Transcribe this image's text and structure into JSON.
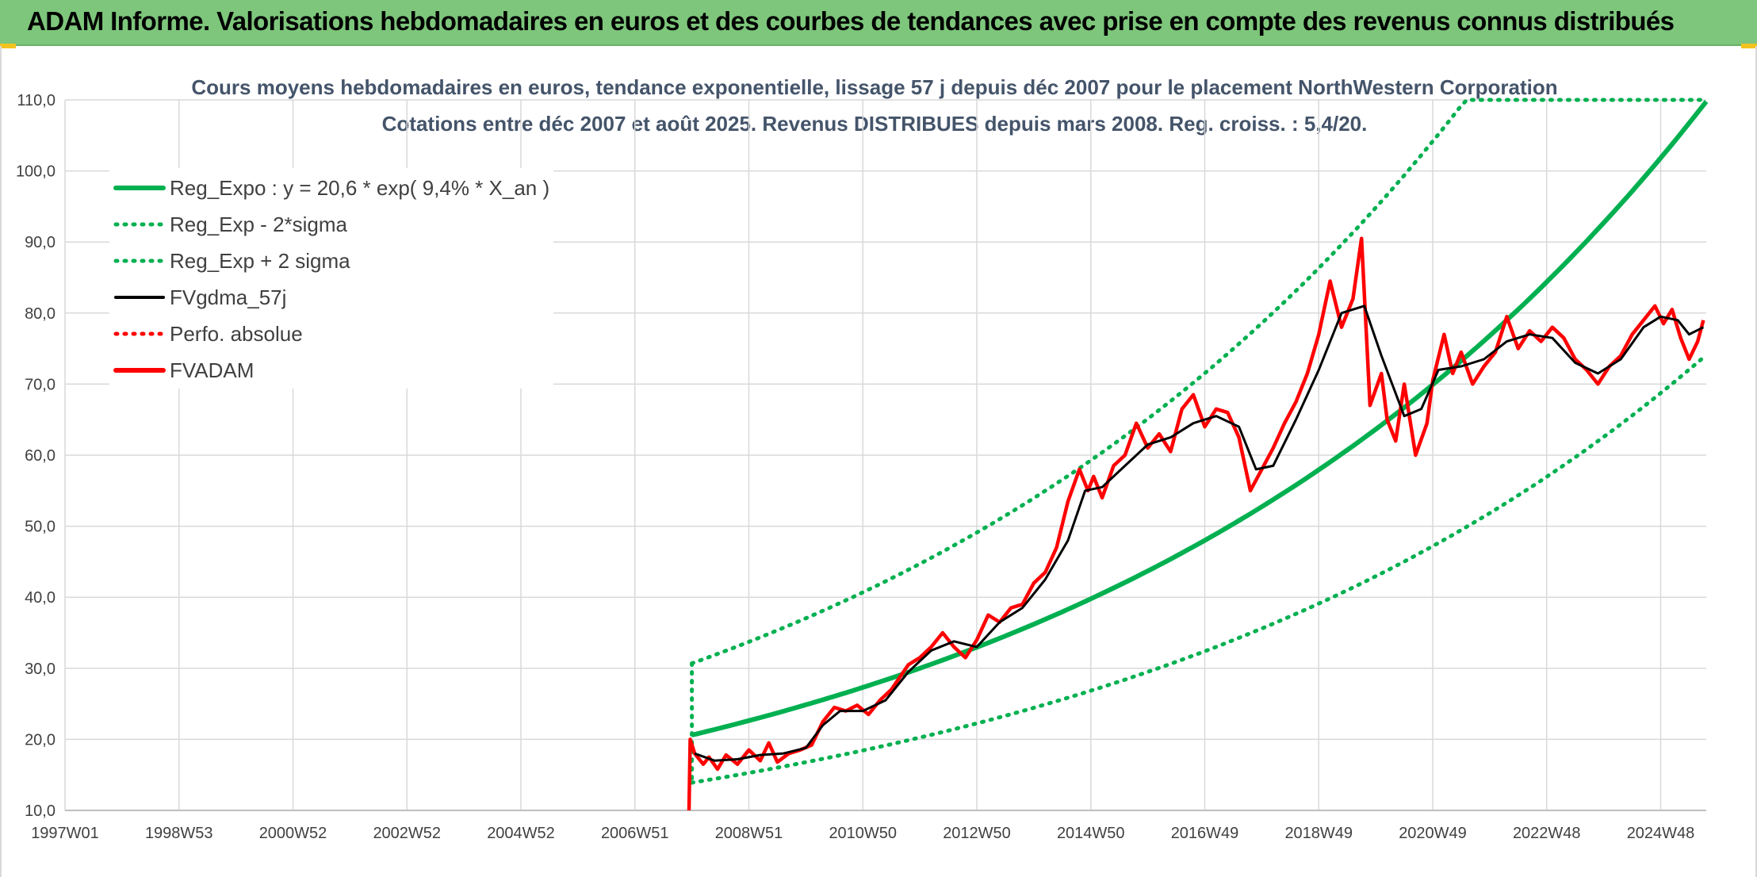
{
  "banner": {
    "title": "ADAM Informe. Valorisations hebdomadaires en euros et des courbes de tendances avec prise en compte des revenus connus distribués"
  },
  "colors": {
    "banner_bg": "#7dc67b",
    "regression": "#00b050",
    "smoothed": "#000000",
    "price": "#ff0000",
    "grid": "#d9d9d9"
  },
  "chart_data": {
    "type": "line",
    "title": "Cours moyens hebdomadaires en euros, tendance exponentielle, lissage 57 j depuis déc 2007 pour le placement NorthWestern Corporation",
    "subtitle": "Cotations entre déc 2007 et août 2025. Revenus DISTRIBUES depuis mars 2008. Reg. croiss. : 5,4/20.",
    "xlabel": "",
    "ylabel": "",
    "ylim": [
      10,
      110
    ],
    "yticks": [
      "10,0",
      "20,0",
      "30,0",
      "40,0",
      "50,0",
      "60,0",
      "70,0",
      "80,0",
      "90,0",
      "100,0",
      "110,0"
    ],
    "xlim": [
      1997.0,
      2025.8
    ],
    "xtick_labels": [
      "1997W01",
      "1998W53",
      "2000W52",
      "2002W52",
      "2004W52",
      "2006W51",
      "2008W51",
      "2010W50",
      "2012W50",
      "2014W50",
      "2016W49",
      "2018W49",
      "2020W49",
      "2022W48",
      "2024W48"
    ],
    "xtick_years": [
      1997.0,
      1999.0,
      2001.0,
      2003.0,
      2005.0,
      2007.0,
      2009.0,
      2011.0,
      2013.0,
      2015.0,
      2017.0,
      2019.0,
      2021.0,
      2023.0,
      2025.0
    ],
    "grid": true,
    "legend_position": "top-left",
    "legend": [
      {
        "label": "Reg_Expo : y = 20,6 * exp( 9,4% *  X_an )",
        "color": "#00b050",
        "style": "solid-thick"
      },
      {
        "label": "Reg_Exp - 2*sigma",
        "color": "#00b050",
        "style": "dotted"
      },
      {
        "label": "Reg_Exp + 2 sigma",
        "color": "#00b050",
        "style": "dotted"
      },
      {
        "label": "FVgdma_57j",
        "color": "#000000",
        "style": "solid"
      },
      {
        "label": "Perfo. absolue",
        "color": "#ff0000",
        "style": "dotted"
      },
      {
        "label": "FVADAM",
        "color": "#ff0000",
        "style": "solid-thick"
      }
    ],
    "regression": {
      "a": 20.6,
      "rate": 0.094,
      "start": 2008.0,
      "end": 2025.8,
      "lower_factor": 0.675,
      "upper_factor": 1.49
    },
    "series": [
      {
        "name": "FVADAM",
        "x": [
          2007.95,
          2007.97,
          2008.05,
          2008.2,
          2008.3,
          2008.45,
          2008.6,
          2008.8,
          2009.0,
          2009.2,
          2009.35,
          2009.5,
          2009.7,
          2009.9,
          2010.1,
          2010.3,
          2010.5,
          2010.7,
          2010.9,
          2011.1,
          2011.3,
          2011.5,
          2011.8,
          2012.0,
          2012.2,
          2012.4,
          2012.6,
          2012.8,
          2013.0,
          2013.2,
          2013.4,
          2013.6,
          2013.8,
          2014.0,
          2014.2,
          2014.4,
          2014.6,
          2014.8,
          2014.95,
          2015.05,
          2015.2,
          2015.4,
          2015.6,
          2015.8,
          2016.0,
          2016.2,
          2016.4,
          2016.6,
          2016.8,
          2017.0,
          2017.2,
          2017.4,
          2017.6,
          2017.8,
          2018.0,
          2018.2,
          2018.4,
          2018.6,
          2018.8,
          2019.0,
          2019.2,
          2019.4,
          2019.6,
          2019.75,
          2019.9,
          2020.1,
          2020.2,
          2020.35,
          2020.5,
          2020.7,
          2020.9,
          2021.0,
          2021.2,
          2021.35,
          2021.5,
          2021.7,
          2021.9,
          2022.1,
          2022.3,
          2022.5,
          2022.7,
          2022.9,
          2023.1,
          2023.3,
          2023.5,
          2023.7,
          2023.9,
          2024.1,
          2024.3,
          2024.5,
          2024.7,
          2024.9,
          2025.05,
          2025.2,
          2025.35,
          2025.5,
          2025.65,
          2025.75
        ],
        "values": [
          10.0,
          20.0,
          18.0,
          16.5,
          17.5,
          15.8,
          17.8,
          16.5,
          18.5,
          17.0,
          19.5,
          16.8,
          18.0,
          18.5,
          19.2,
          22.5,
          24.5,
          24.0,
          24.8,
          23.5,
          25.5,
          27.0,
          30.5,
          31.5,
          33.0,
          35.0,
          33.0,
          31.5,
          34.0,
          37.5,
          36.5,
          38.5,
          39.0,
          42.0,
          43.5,
          47.0,
          53.5,
          58.0,
          55.0,
          57.0,
          54.0,
          58.5,
          60.0,
          64.5,
          61.0,
          63.0,
          60.5,
          66.5,
          68.5,
          64.0,
          66.5,
          66.0,
          62.5,
          55.0,
          58.0,
          61.0,
          64.5,
          67.5,
          71.5,
          77.0,
          84.5,
          78.0,
          82.0,
          90.5,
          67.0,
          71.5,
          65.0,
          62.0,
          70.0,
          60.0,
          64.5,
          70.5,
          77.0,
          71.5,
          74.5,
          70.0,
          72.5,
          74.5,
          79.5,
          75.0,
          77.5,
          76.0,
          78.0,
          76.5,
          73.5,
          72.0,
          70.0,
          72.5,
          74.0,
          77.0,
          79.0,
          81.0,
          78.5,
          80.5,
          76.5,
          73.5,
          76.0,
          79.0
        ]
      },
      {
        "name": "FVgdma_57j",
        "x": [
          2008.05,
          2008.4,
          2008.8,
          2009.2,
          2009.6,
          2010.0,
          2010.3,
          2010.6,
          2011.0,
          2011.4,
          2011.8,
          2012.2,
          2012.6,
          2013.0,
          2013.4,
          2013.8,
          2014.2,
          2014.6,
          2014.9,
          2015.2,
          2015.6,
          2016.0,
          2016.4,
          2016.8,
          2017.2,
          2017.6,
          2017.9,
          2018.2,
          2018.6,
          2019.0,
          2019.4,
          2019.8,
          2020.1,
          2020.5,
          2020.8,
          2021.1,
          2021.5,
          2021.9,
          2022.3,
          2022.7,
          2023.1,
          2023.5,
          2023.9,
          2024.3,
          2024.7,
          2025.0,
          2025.3,
          2025.5,
          2025.75
        ],
        "values": [
          18.0,
          17.0,
          17.2,
          17.8,
          18.0,
          18.8,
          22.0,
          24.0,
          24.0,
          25.5,
          29.5,
          32.5,
          33.8,
          33.0,
          36.5,
          38.5,
          42.5,
          48.0,
          55.0,
          55.5,
          58.5,
          61.5,
          62.5,
          64.5,
          65.5,
          64.0,
          58.0,
          58.5,
          65.0,
          72.0,
          80.0,
          81.0,
          74.0,
          65.5,
          66.5,
          72.0,
          72.5,
          73.5,
          76.0,
          77.0,
          76.5,
          73.0,
          71.5,
          73.5,
          78.0,
          79.5,
          79.0,
          77.0,
          78.0
        ]
      }
    ]
  }
}
